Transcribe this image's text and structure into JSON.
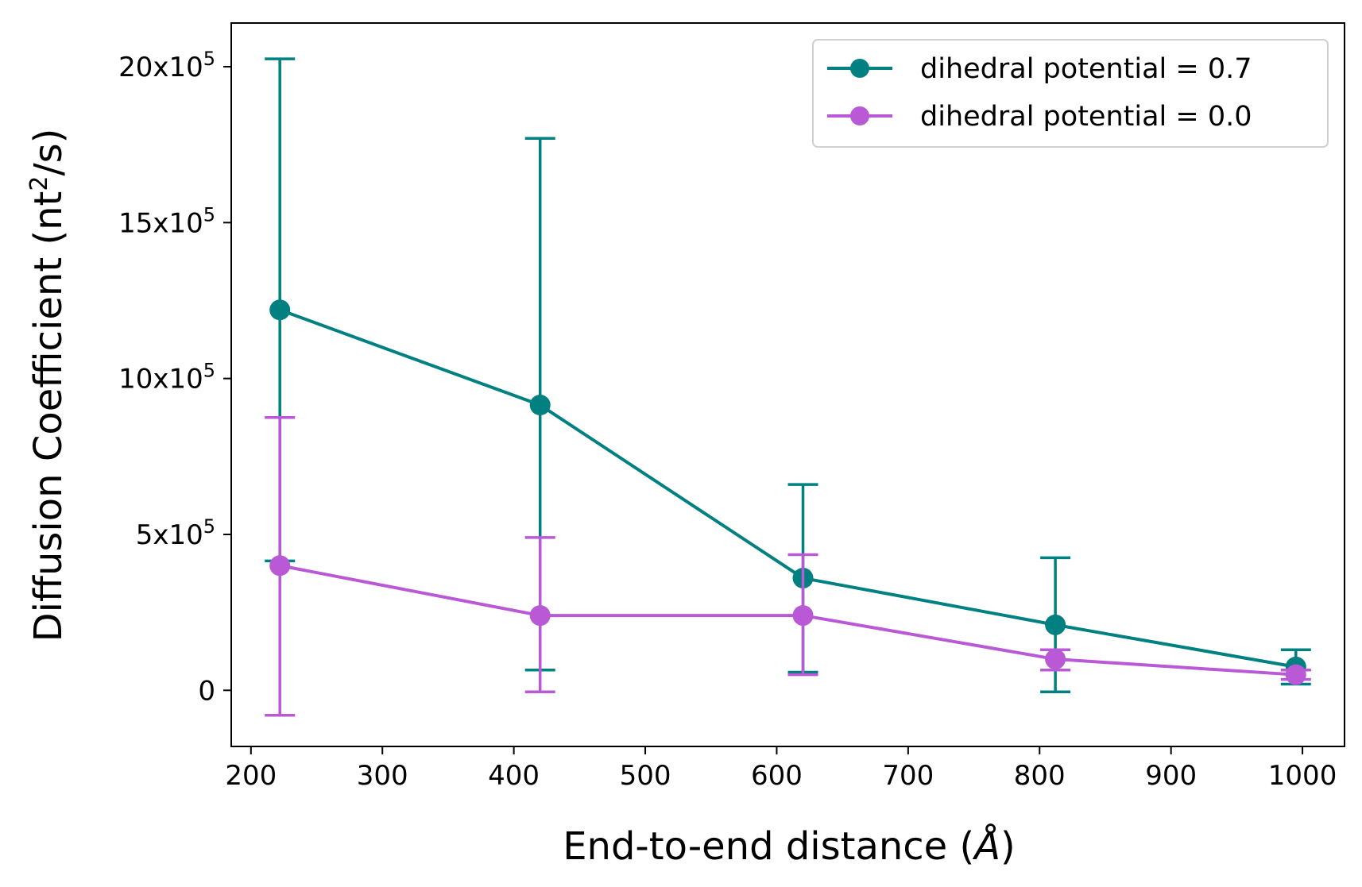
{
  "chart_data": {
    "type": "line",
    "xlabel": "End-to-end distance (",
    "xlabel_unit": "Å",
    "xlabel_close": ")",
    "ylabel": "Diffusion Coefficient (nt",
    "ylabel_sup": "2",
    "ylabel_close": "/s)",
    "xlim": [
      185,
      1032
    ],
    "ylim": [
      -180000,
      2140000
    ],
    "xticks": [
      200,
      300,
      400,
      500,
      600,
      700,
      800,
      900,
      1000
    ],
    "xtick_labels": [
      "200",
      "300",
      "400",
      "500",
      "600",
      "700",
      "800",
      "900",
      "1000"
    ],
    "yticks": [
      {
        "value": 0,
        "base": "0",
        "exp": ""
      },
      {
        "value": 500000,
        "base": "5x10",
        "exp": "5"
      },
      {
        "value": 1000000,
        "base": "10x10",
        "exp": "5"
      },
      {
        "value": 1500000,
        "base": "15x10",
        "exp": "5"
      },
      {
        "value": 2000000,
        "base": "20x10",
        "exp": "5"
      }
    ],
    "grid": false,
    "legend_position": "top-right",
    "series": [
      {
        "name": "dihedral potential = 0.7",
        "color": "#008080",
        "x": [
          222,
          420,
          620,
          812,
          995
        ],
        "y": [
          1220000,
          915000,
          360000,
          210000,
          75000
        ],
        "err_low": [
          415000,
          65000,
          58000,
          -5000,
          20000
        ],
        "err_high": [
          2025000,
          1770000,
          660000,
          425000,
          130000
        ]
      },
      {
        "name": "dihedral potential = 0.0",
        "color": "#b959d6",
        "x": [
          222,
          420,
          620,
          812,
          995
        ],
        "y": [
          400000,
          240000,
          240000,
          100000,
          50000
        ],
        "err_low": [
          -80000,
          -5000,
          50000,
          65000,
          35000
        ],
        "err_high": [
          875000,
          490000,
          435000,
          130000,
          65000
        ]
      }
    ]
  }
}
